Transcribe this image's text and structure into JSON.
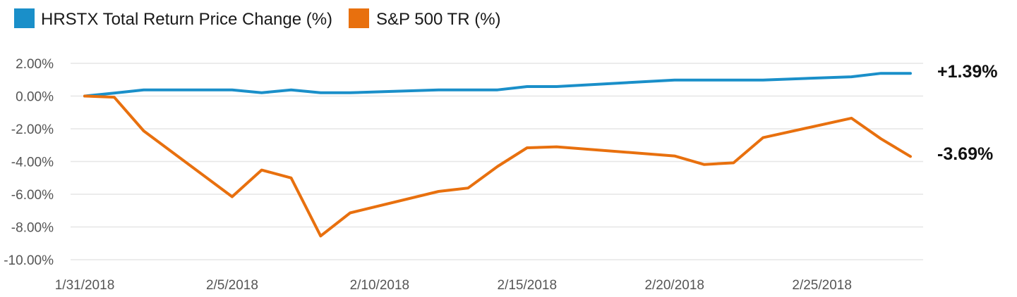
{
  "chart_data": {
    "type": "line",
    "legend": {
      "position": "top-left",
      "entries": [
        "HRSTX Total Return Price Change (%)",
        "S&P 500 TR (%)"
      ]
    },
    "x": [
      "1/31/2018",
      "2/1/2018",
      "2/2/2018",
      "2/5/2018",
      "2/6/2018",
      "2/7/2018",
      "2/8/2018",
      "2/9/2018",
      "2/12/2018",
      "2/13/2018",
      "2/14/2018",
      "2/15/2018",
      "2/16/2018",
      "2/20/2018",
      "2/21/2018",
      "2/22/2018",
      "2/23/2018",
      "2/26/2018",
      "2/27/2018",
      "2/28/2018"
    ],
    "x_days": [
      0,
      1,
      2,
      5,
      6,
      7,
      8,
      9,
      12,
      13,
      14,
      15,
      16,
      20,
      21,
      22,
      23,
      26,
      27,
      28
    ],
    "x_range": [
      0,
      28
    ],
    "x_ticks": [
      0,
      5,
      10,
      15,
      20,
      25
    ],
    "x_tick_labels": [
      "1/31/2018",
      "2/5/2018",
      "2/10/2018",
      "2/15/2018",
      "2/20/2018",
      "2/25/2018"
    ],
    "series": [
      {
        "name": "HRSTX Total Return Price Change (%)",
        "color": "#1a8fc9",
        "values": [
          0.0,
          0.18,
          0.38,
          0.38,
          0.2,
          0.38,
          0.2,
          0.2,
          0.38,
          0.38,
          0.38,
          0.58,
          0.58,
          0.98,
          0.98,
          0.98,
          0.98,
          1.18,
          1.39,
          1.39
        ],
        "end_label": "+1.39%"
      },
      {
        "name": "S&P 500 TR (%)",
        "color": "#e8700e",
        "values": [
          0.0,
          -0.07,
          -2.13,
          -6.15,
          -4.52,
          -5.0,
          -8.55,
          -7.14,
          -5.83,
          -5.62,
          -4.3,
          -3.16,
          -3.1,
          -3.66,
          -4.18,
          -4.08,
          -2.54,
          -1.35,
          -2.61,
          -3.69
        ],
        "end_label": "-3.69%"
      }
    ],
    "ylim": [
      -10,
      2
    ],
    "y_ticks": [
      2,
      0,
      -2,
      -4,
      -6,
      -8,
      -10
    ],
    "y_tick_labels": [
      "2.00%",
      "0.00%",
      "-2.00%",
      "-4.00%",
      "-6.00%",
      "-8.00%",
      "-10.00%"
    ],
    "grid": true
  }
}
